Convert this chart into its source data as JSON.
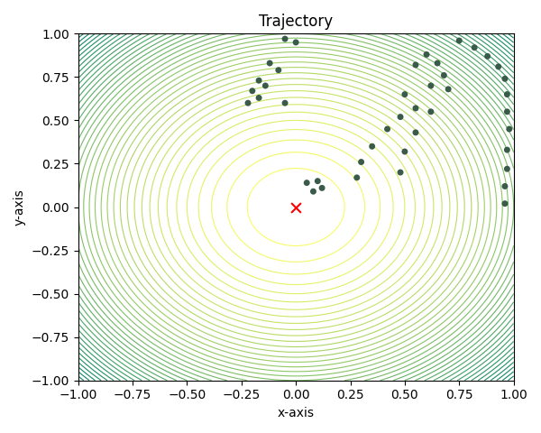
{
  "title": "Trajectory",
  "xlabel": "x-axis",
  "ylabel": "y-axis",
  "xlim": [
    -1.0,
    1.0
  ],
  "ylim": [
    -1.0,
    1.0
  ],
  "x_min": 0.0,
  "y_min": 0.0,
  "contour_levels": 40,
  "cmap": "summer_r",
  "marker_color": "#3a5a4a",
  "marker_size": 5,
  "bg_color": "white",
  "particles": [
    [
      -0.05,
      0.97
    ],
    [
      0.0,
      0.95
    ],
    [
      -0.12,
      0.83
    ],
    [
      -0.08,
      0.79
    ],
    [
      -0.17,
      0.73
    ],
    [
      -0.14,
      0.7
    ],
    [
      -0.2,
      0.67
    ],
    [
      -0.17,
      0.63
    ],
    [
      -0.22,
      0.6
    ],
    [
      -0.05,
      0.6
    ],
    [
      0.05,
      0.14
    ],
    [
      0.08,
      0.09
    ],
    [
      0.1,
      0.15
    ],
    [
      0.12,
      0.11
    ],
    [
      0.6,
      0.88
    ],
    [
      0.65,
      0.83
    ],
    [
      0.55,
      0.82
    ],
    [
      0.68,
      0.76
    ],
    [
      0.62,
      0.7
    ],
    [
      0.5,
      0.65
    ],
    [
      0.55,
      0.57
    ],
    [
      0.48,
      0.52
    ],
    [
      0.42,
      0.45
    ],
    [
      0.35,
      0.35
    ],
    [
      0.3,
      0.26
    ],
    [
      0.28,
      0.17
    ],
    [
      0.75,
      0.96
    ],
    [
      0.82,
      0.92
    ],
    [
      0.88,
      0.87
    ],
    [
      0.93,
      0.81
    ],
    [
      0.96,
      0.74
    ],
    [
      0.97,
      0.65
    ],
    [
      0.97,
      0.55
    ],
    [
      0.98,
      0.45
    ],
    [
      0.97,
      0.33
    ],
    [
      0.97,
      0.22
    ],
    [
      0.96,
      0.12
    ],
    [
      0.96,
      0.02
    ],
    [
      0.7,
      0.68
    ],
    [
      0.62,
      0.55
    ],
    [
      0.55,
      0.43
    ],
    [
      0.5,
      0.32
    ],
    [
      0.48,
      0.2
    ]
  ]
}
